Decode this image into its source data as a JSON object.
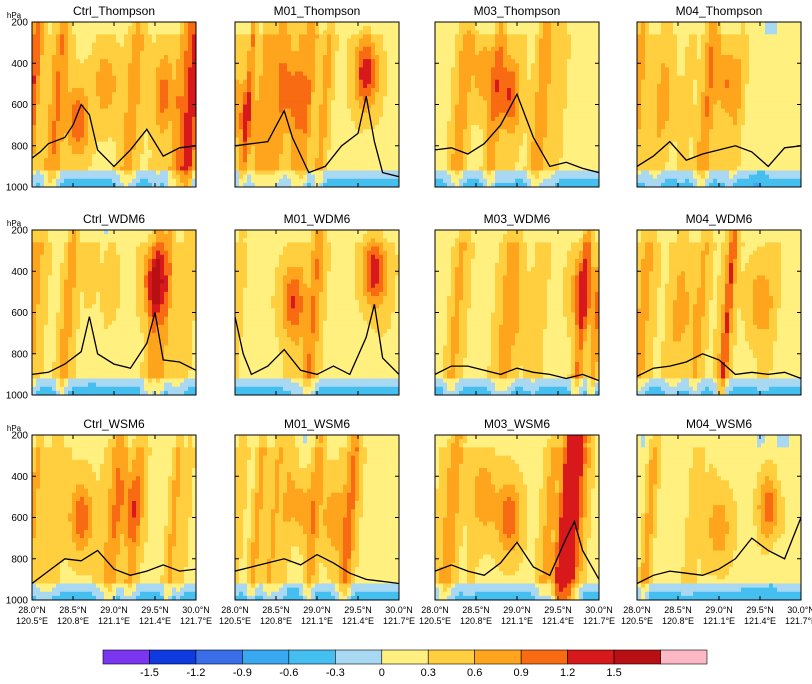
{
  "chart_data": [
    {
      "type": "heatmap",
      "title": "Ctrl_Thompson",
      "ylabel": "hPa",
      "ylim": [
        1000,
        200
      ],
      "y_ticks": [
        "200",
        "400",
        "600",
        "800",
        "1000"
      ],
      "x_ticks": [
        {
          "lat": "28.0°N",
          "lon": "120.5°E"
        },
        {
          "lat": "28.5°N",
          "lon": "120.8°E"
        },
        {
          "lat": "29.0°N",
          "lon": "121.1°E"
        },
        {
          "lat": "29.5°N",
          "lon": "121.4°E"
        },
        {
          "lat": "30.0°N",
          "lon": "121.7°E"
        }
      ],
      "field_range": [
        -0.6,
        1.5
      ],
      "cores": [
        {
          "x": 0.28,
          "p": 680,
          "value": 1.2
        },
        {
          "x": 0.45,
          "p": 500,
          "value": 0.9
        },
        {
          "x": 0.8,
          "p": 550,
          "value": 0.9
        }
      ],
      "contour": [
        [
          0.0,
          860
        ],
        [
          0.05,
          830
        ],
        [
          0.1,
          790
        ],
        [
          0.2,
          760
        ],
        [
          0.25,
          700
        ],
        [
          0.3,
          600
        ],
        [
          0.35,
          650
        ],
        [
          0.4,
          820
        ],
        [
          0.5,
          900
        ],
        [
          0.6,
          820
        ],
        [
          0.7,
          720
        ],
        [
          0.8,
          850
        ],
        [
          0.9,
          810
        ],
        [
          1.0,
          800
        ]
      ]
    },
    {
      "type": "heatmap",
      "title": "M01_Thompson",
      "ylabel": "",
      "ylim": [
        1000,
        200
      ],
      "y_ticks": [],
      "x_ticks": [],
      "field_range": [
        -0.6,
        1.5
      ],
      "cores": [
        {
          "x": 0.05,
          "p": 650,
          "value": 0.9
        },
        {
          "x": 0.8,
          "p": 450,
          "value": 1.5
        },
        {
          "x": 0.35,
          "p": 550,
          "value": 0.9
        }
      ],
      "contour": [
        [
          0.0,
          800
        ],
        [
          0.1,
          790
        ],
        [
          0.2,
          780
        ],
        [
          0.3,
          630
        ],
        [
          0.35,
          760
        ],
        [
          0.45,
          930
        ],
        [
          0.55,
          900
        ],
        [
          0.65,
          800
        ],
        [
          0.75,
          740
        ],
        [
          0.8,
          560
        ],
        [
          0.85,
          780
        ],
        [
          0.9,
          930
        ],
        [
          1.0,
          950
        ]
      ]
    },
    {
      "type": "heatmap",
      "title": "M03_Thompson",
      "ylabel": "",
      "ylim": [
        1000,
        200
      ],
      "y_ticks": [],
      "x_ticks": [],
      "field_range": [
        -0.6,
        1.2
      ],
      "cores": [
        {
          "x": 0.45,
          "p": 550,
          "value": 1.2
        },
        {
          "x": 0.3,
          "p": 450,
          "value": 0.9
        }
      ],
      "contour": [
        [
          0.0,
          820
        ],
        [
          0.1,
          810
        ],
        [
          0.2,
          840
        ],
        [
          0.3,
          790
        ],
        [
          0.4,
          700
        ],
        [
          0.5,
          550
        ],
        [
          0.6,
          760
        ],
        [
          0.7,
          900
        ],
        [
          0.8,
          880
        ],
        [
          0.9,
          910
        ],
        [
          1.0,
          930
        ]
      ]
    },
    {
      "type": "heatmap",
      "title": "M04_Thompson",
      "ylabel": "",
      "ylim": [
        1000,
        200
      ],
      "y_ticks": [],
      "x_ticks": [],
      "field_range": [
        -0.9,
        1.2
      ],
      "cores": [
        {
          "x": 0.55,
          "p": 500,
          "value": 0.9
        },
        {
          "x": 0.2,
          "p": 600,
          "value": 0.6
        }
      ],
      "contour": [
        [
          0.0,
          900
        ],
        [
          0.1,
          850
        ],
        [
          0.2,
          780
        ],
        [
          0.3,
          870
        ],
        [
          0.4,
          840
        ],
        [
          0.5,
          820
        ],
        [
          0.6,
          800
        ],
        [
          0.7,
          830
        ],
        [
          0.8,
          900
        ],
        [
          0.9,
          810
        ],
        [
          1.0,
          800
        ]
      ]
    },
    {
      "type": "heatmap",
      "title": "Ctrl_WDM6",
      "ylabel": "hPa",
      "ylim": [
        1000,
        200
      ],
      "y_ticks": [
        "200",
        "400",
        "600",
        "800",
        "1000"
      ],
      "x_ticks": [],
      "field_range": [
        -0.6,
        1.5
      ],
      "cores": [
        {
          "x": 0.75,
          "p": 450,
          "value": 1.5
        },
        {
          "x": 0.45,
          "p": 450,
          "value": 0.6
        }
      ],
      "contour": [
        [
          0.0,
          900
        ],
        [
          0.1,
          890
        ],
        [
          0.2,
          850
        ],
        [
          0.3,
          790
        ],
        [
          0.35,
          620
        ],
        [
          0.4,
          800
        ],
        [
          0.5,
          850
        ],
        [
          0.6,
          870
        ],
        [
          0.7,
          750
        ],
        [
          0.75,
          600
        ],
        [
          0.8,
          830
        ],
        [
          0.9,
          840
        ],
        [
          1.0,
          880
        ]
      ]
    },
    {
      "type": "heatmap",
      "title": "M01_WDM6",
      "ylabel": "",
      "ylim": [
        1000,
        200
      ],
      "y_ticks": [],
      "x_ticks": [],
      "field_range": [
        -0.9,
        1.5
      ],
      "cores": [
        {
          "x": 0.85,
          "p": 400,
          "value": 1.5
        },
        {
          "x": 0.35,
          "p": 550,
          "value": 1.2
        }
      ],
      "contour": [
        [
          0.0,
          620
        ],
        [
          0.05,
          800
        ],
        [
          0.1,
          900
        ],
        [
          0.2,
          860
        ],
        [
          0.3,
          780
        ],
        [
          0.4,
          880
        ],
        [
          0.5,
          900
        ],
        [
          0.6,
          860
        ],
        [
          0.7,
          900
        ],
        [
          0.8,
          720
        ],
        [
          0.85,
          560
        ],
        [
          0.9,
          820
        ],
        [
          1.0,
          900
        ]
      ]
    },
    {
      "type": "heatmap",
      "title": "M03_WDM6",
      "ylabel": "",
      "ylim": [
        1000,
        200
      ],
      "y_ticks": [],
      "x_ticks": [],
      "field_range": [
        -0.6,
        1.2
      ],
      "cores": [
        {
          "x": 0.9,
          "p": 500,
          "value": 1.2
        },
        {
          "x": 0.5,
          "p": 600,
          "value": 0.6
        }
      ],
      "contour": [
        [
          0.0,
          900
        ],
        [
          0.1,
          860
        ],
        [
          0.2,
          860
        ],
        [
          0.3,
          880
        ],
        [
          0.4,
          900
        ],
        [
          0.5,
          870
        ],
        [
          0.6,
          890
        ],
        [
          0.7,
          900
        ],
        [
          0.8,
          920
        ],
        [
          0.9,
          900
        ],
        [
          1.0,
          930
        ]
      ]
    },
    {
      "type": "heatmap",
      "title": "M04_WDM6",
      "ylabel": "",
      "ylim": [
        1000,
        200
      ],
      "y_ticks": [],
      "x_ticks": [],
      "field_range": [
        -0.6,
        1.2
      ],
      "cores": [
        {
          "x": 0.75,
          "p": 550,
          "value": 0.9
        },
        {
          "x": 0.3,
          "p": 600,
          "value": 0.6
        }
      ],
      "contour": [
        [
          0.0,
          910
        ],
        [
          0.1,
          870
        ],
        [
          0.2,
          860
        ],
        [
          0.3,
          840
        ],
        [
          0.4,
          800
        ],
        [
          0.5,
          830
        ],
        [
          0.6,
          900
        ],
        [
          0.7,
          890
        ],
        [
          0.8,
          900
        ],
        [
          0.9,
          890
        ],
        [
          1.0,
          920
        ]
      ]
    },
    {
      "type": "heatmap",
      "title": "Ctrl_WSM6",
      "ylabel": "hPa",
      "ylim": [
        1000,
        200
      ],
      "y_ticks": [
        "200",
        "400",
        "600",
        "800",
        "1000"
      ],
      "x_ticks": [],
      "field_range": [
        -0.6,
        1.2
      ],
      "cores": [
        {
          "x": 0.3,
          "p": 600,
          "value": 1.2
        },
        {
          "x": 0.6,
          "p": 550,
          "value": 0.9
        }
      ],
      "contour": [
        [
          0.0,
          920
        ],
        [
          0.1,
          860
        ],
        [
          0.2,
          800
        ],
        [
          0.3,
          810
        ],
        [
          0.4,
          760
        ],
        [
          0.5,
          850
        ],
        [
          0.6,
          880
        ],
        [
          0.7,
          860
        ],
        [
          0.8,
          830
        ],
        [
          0.9,
          860
        ],
        [
          1.0,
          850
        ]
      ]
    },
    {
      "type": "heatmap",
      "title": "M01_WSM6",
      "ylabel": "",
      "ylim": [
        1000,
        200
      ],
      "y_ticks": [],
      "x_ticks": [],
      "field_range": [
        -0.6,
        1.2
      ],
      "cores": [
        {
          "x": 0.4,
          "p": 550,
          "value": 0.9
        },
        {
          "x": 0.6,
          "p": 600,
          "value": 0.9
        }
      ],
      "contour": [
        [
          0.0,
          860
        ],
        [
          0.1,
          840
        ],
        [
          0.2,
          820
        ],
        [
          0.3,
          800
        ],
        [
          0.4,
          830
        ],
        [
          0.5,
          780
        ],
        [
          0.6,
          820
        ],
        [
          0.7,
          870
        ],
        [
          0.8,
          900
        ],
        [
          0.9,
          910
        ],
        [
          1.0,
          920
        ]
      ]
    },
    {
      "type": "heatmap",
      "title": "M03_WSM6",
      "ylabel": "",
      "ylim": [
        1000,
        200
      ],
      "y_ticks": [],
      "x_ticks": [],
      "field_range": [
        -0.6,
        1.2
      ],
      "cores": [
        {
          "x": 0.45,
          "p": 600,
          "value": 1.2
        },
        {
          "x": 0.3,
          "p": 500,
          "value": 0.9
        }
      ],
      "contour": [
        [
          0.0,
          860
        ],
        [
          0.1,
          830
        ],
        [
          0.2,
          860
        ],
        [
          0.3,
          880
        ],
        [
          0.4,
          820
        ],
        [
          0.5,
          720
        ],
        [
          0.6,
          840
        ],
        [
          0.7,
          880
        ],
        [
          0.8,
          700
        ],
        [
          0.85,
          620
        ],
        [
          0.9,
          760
        ],
        [
          1.0,
          900
        ]
      ]
    },
    {
      "type": "heatmap",
      "title": "M04_WSM6",
      "ylabel": "",
      "ylim": [
        1000,
        200
      ],
      "y_ticks": [],
      "x_ticks": [],
      "field_range": [
        -0.6,
        1.2
      ],
      "cores": [
        {
          "x": 0.8,
          "p": 550,
          "value": 1.2
        },
        {
          "x": 0.5,
          "p": 650,
          "value": 0.9
        }
      ],
      "contour": [
        [
          0.0,
          920
        ],
        [
          0.1,
          880
        ],
        [
          0.2,
          860
        ],
        [
          0.3,
          870
        ],
        [
          0.4,
          880
        ],
        [
          0.5,
          850
        ],
        [
          0.6,
          800
        ],
        [
          0.7,
          700
        ],
        [
          0.8,
          760
        ],
        [
          0.9,
          800
        ],
        [
          1.0,
          600
        ]
      ]
    }
  ],
  "colorbar": {
    "labels": [
      "-1.5",
      "-1.2",
      "-0.9",
      "-0.6",
      "-0.3",
      "0",
      "0.3",
      "0.6",
      "0.9",
      "1.2",
      "1.5"
    ],
    "bounds": [
      -1.8,
      -1.5,
      -1.2,
      -0.9,
      -0.6,
      -0.3,
      0,
      0.3,
      0.6,
      0.9,
      1.2,
      1.5,
      1.8
    ],
    "colors": [
      "#7a36f0",
      "#0f3ae0",
      "#3a6ee8",
      "#3aa8f0",
      "#44bff0",
      "#a9d9f2",
      "#fff07f",
      "#ffcf3f",
      "#ffa51d",
      "#f86b12",
      "#d8191c",
      "#b80f15",
      "#fcb8c4"
    ]
  }
}
